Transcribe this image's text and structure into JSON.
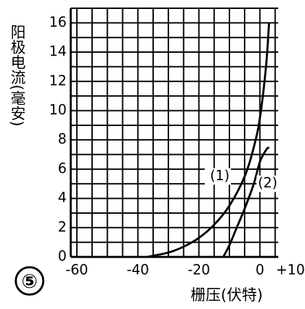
{
  "chart_data": {
    "type": "line",
    "title": "⑤",
    "x_label": "栅压(伏特)",
    "y_label": "阳极电流(毫安)",
    "xlim": [
      -62,
      6
    ],
    "ylim": [
      0,
      17
    ],
    "xticks": [
      -60,
      -40,
      -20,
      0,
      {
        "value": 10,
        "label": "+10"
      }
    ],
    "yticks": [
      0,
      2,
      4,
      6,
      8,
      10,
      12,
      14,
      16
    ],
    "x_grid": [
      -60,
      -55,
      -50,
      -45,
      -40,
      -35,
      -30,
      -25,
      -20,
      -15,
      -10,
      -5,
      0,
      5
    ],
    "y_grid": [
      0,
      1,
      2,
      3,
      4,
      5,
      6,
      7,
      8,
      9,
      10,
      11,
      12,
      13,
      14,
      15,
      16,
      17
    ],
    "series": [
      {
        "name": "(1)",
        "color": "#000000",
        "x": [
          -37,
          -30,
          -25,
          -20,
          -15,
          -10,
          -5,
          -2,
          0,
          2,
          3
        ],
        "values": [
          0,
          0.3,
          0.7,
          1.3,
          2.2,
          3.5,
          5.5,
          7.5,
          9.5,
          13,
          16
        ]
      },
      {
        "name": "(2)",
        "color": "#000000",
        "x": [
          -12,
          -10,
          -8,
          -5,
          -2,
          0,
          2,
          3
        ],
        "values": [
          0,
          0.8,
          1.8,
          3.3,
          5,
          6.5,
          7.3,
          7.5
        ]
      }
    ]
  }
}
